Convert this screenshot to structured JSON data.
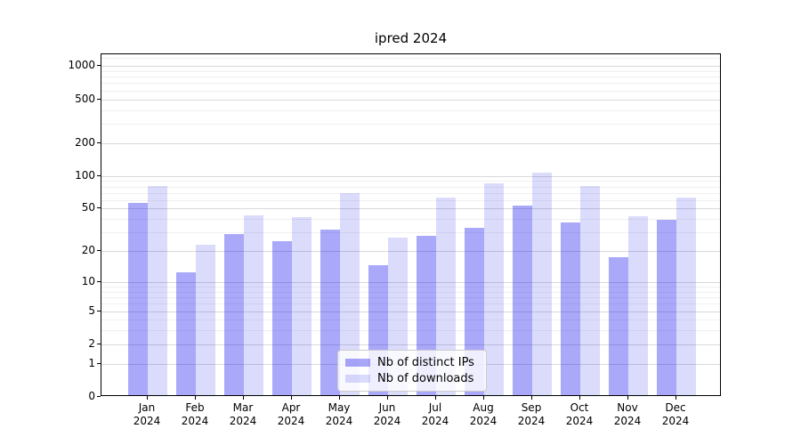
{
  "chart_data": {
    "type": "bar",
    "title": "ipred 2024",
    "categories": [
      "Jan",
      "Feb",
      "Mar",
      "Apr",
      "May",
      "Jun",
      "Jul",
      "Aug",
      "Sep",
      "Oct",
      "Nov",
      "Dec"
    ],
    "x_tick_second_line": "2024",
    "series": [
      {
        "name": "Nb of distinct IPs",
        "color": "rgba(8,4,234,0.345)",
        "values": [
          54,
          12,
          28,
          24,
          31,
          14,
          27,
          32,
          51,
          36,
          17,
          38
        ]
      },
      {
        "name": "Nb of downloads",
        "color": "rgba(8,4,234,0.145)",
        "values": [
          78,
          22,
          42,
          40,
          67,
          26,
          61,
          83,
          103,
          78,
          41,
          61
        ]
      }
    ],
    "xlabel": "",
    "ylabel": "",
    "yscale": "log1p",
    "ylim": [
      0,
      1280
    ],
    "y_ticks": [
      0,
      1,
      2,
      5,
      10,
      20,
      50,
      100,
      200,
      500,
      1000
    ],
    "y_minor_gridlines": [
      3,
      4,
      6,
      7,
      8,
      9,
      30,
      40,
      60,
      70,
      80,
      90,
      300,
      400,
      600,
      700,
      800,
      900,
      1200
    ],
    "grid": true,
    "legend_position": "lower center",
    "colors": {
      "bar_dark": "rgba(8,4,234,0.345)",
      "bar_light": "rgba(8,4,234,0.145)",
      "grid_major": "#d9d9d9",
      "grid_minor": "#f0f0f0",
      "axis": "#000000",
      "background": "#ffffff"
    }
  }
}
